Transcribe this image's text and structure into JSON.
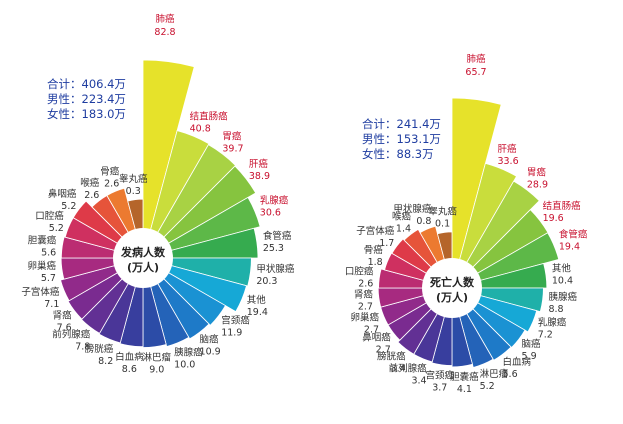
{
  "chart_data": [
    {
      "type": "radial-bar",
      "center_title": [
        "发病人数",
        "(万人)"
      ],
      "totals": [
        "合计：406.4万",
        "男性：223.4万",
        "女性：183.0万"
      ],
      "categories": [
        "肺癌",
        "结直肠癌",
        "胃癌",
        "肝癌",
        "乳腺癌",
        "食管癌",
        "甲状腺癌",
        "其他",
        "宫颈癌",
        "脑癌",
        "胰腺癌",
        "淋巴瘤",
        "白血病",
        "膀胱癌",
        "前列腺癌",
        "肾癌",
        "子宫体癌",
        "卵巢癌",
        "胆囊癌",
        "口腔癌",
        "鼻咽癌",
        "喉癌",
        "骨癌",
        "睾丸癌"
      ],
      "values": [
        82.8,
        40.8,
        39.7,
        38.9,
        30.6,
        25.3,
        20.3,
        19.4,
        11.9,
        10.9,
        10.0,
        9.0,
        8.6,
        8.2,
        7.8,
        7.6,
        7.1,
        5.7,
        5.6,
        5.2,
        5.2,
        2.6,
        2.6,
        0.3
      ],
      "value_labels": [
        "82.8",
        "40.8",
        "39.7",
        "38.9",
        "30.6",
        "25.3",
        "20.3",
        "19.4",
        "11.9",
        "10.9",
        "10.0",
        "9.0",
        "8.6",
        "8.2",
        "7.8",
        "7.6",
        "7.1",
        "5.7",
        "5.6",
        "5.2",
        "5.2",
        "2.6",
        "2.6",
        "0.3"
      ],
      "highlight_count": 5
    },
    {
      "type": "radial-bar",
      "center_title": [
        "死亡人数",
        "(万人)"
      ],
      "totals": [
        "合计：241.4万",
        "男性：153.1万",
        "女性：88.3万"
      ],
      "categories": [
        "肺癌",
        "肝癌",
        "胃癌",
        "结直肠癌",
        "食管癌",
        "其他",
        "胰腺癌",
        "乳腺癌",
        "脑癌",
        "白血病",
        "淋巴瘤",
        "胆囊癌",
        "宫颈癌",
        "前列腺癌",
        "膀胱癌",
        "鼻咽癌",
        "卵巢癌",
        "肾癌",
        "口腔癌",
        "骨癌",
        "子宫体癌",
        "喉癌",
        "甲状腺癌",
        "睾丸癌"
      ],
      "values": [
        65.7,
        33.6,
        28.9,
        19.6,
        19.4,
        10.4,
        8.8,
        7.2,
        5.9,
        5.6,
        5.2,
        4.1,
        3.7,
        3.4,
        3.4,
        2.7,
        2.7,
        2.7,
        2.6,
        1.8,
        1.7,
        1.4,
        0.8,
        0.1
      ],
      "value_labels": [
        "65.7",
        "33.6",
        "28.9",
        "19.6",
        "19.4",
        "10.4",
        "8.8",
        "7.2",
        "5.9",
        "5.6",
        "5.2",
        "4.1",
        "3.7",
        "3.4",
        "3.4",
        "2.7",
        "2.7",
        "2.7",
        "2.6",
        "1.8",
        "1.7",
        "1.4",
        "0.8",
        "0.1"
      ],
      "highlight_count": 5
    }
  ],
  "colors": {
    "palette": [
      "#e6e22a",
      "#c9dd3c",
      "#a8d244",
      "#86c43f",
      "#5db848",
      "#36ab4f",
      "#1fb0a9",
      "#16a8d6",
      "#1a92d3",
      "#1e7ac8",
      "#2463b8",
      "#2c4ca7",
      "#383e9e",
      "#4a3698",
      "#623094",
      "#7a2b90",
      "#912a8a",
      "#a72a80",
      "#bb2c72",
      "#cf3060",
      "#de3a48",
      "#e6543a",
      "#ec7a30",
      "#b5652a"
    ],
    "highlight_text": "#c8102e",
    "normal_text": "#333333",
    "totals_text": "#1f3da0"
  }
}
